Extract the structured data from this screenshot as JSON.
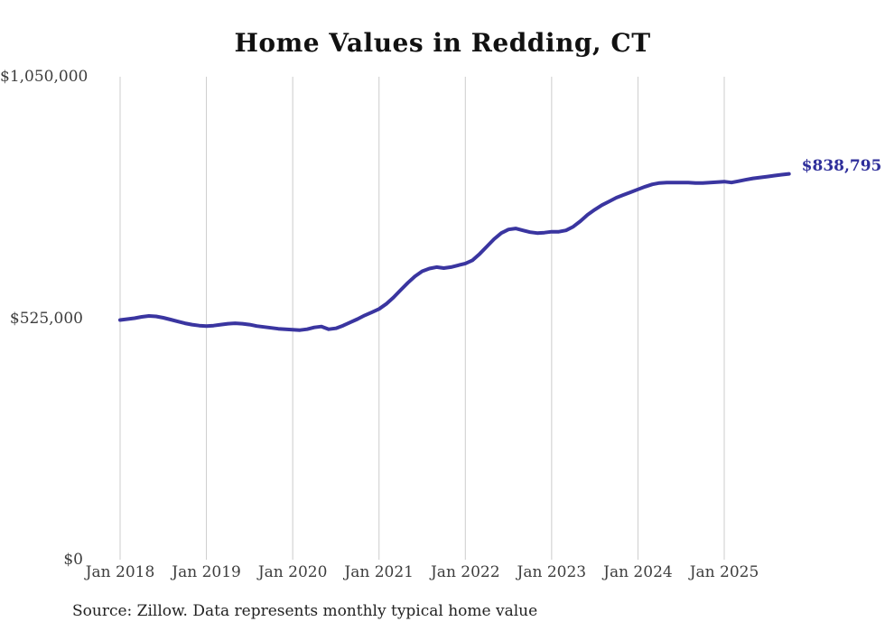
{
  "title": "Home Values in Redding, CT",
  "source_note": "Source: Zillow. Data represents monthly typical home value",
  "end_label": "$838,795",
  "colors": {
    "line": "#3a35a0",
    "end_label": "#2f2f9b",
    "gridline": "#cccccc",
    "title_text": "#111111",
    "axis_text": "#3d3d3d",
    "source_text": "#222222",
    "background": "#ffffff"
  },
  "chart_data": {
    "type": "line",
    "title": "Home Values in Redding, CT",
    "xlabel": "",
    "ylabel": "",
    "ylim": [
      0,
      1050000
    ],
    "y_ticks": [
      0,
      525000,
      1050000
    ],
    "y_tick_labels": [
      "$0",
      "$525,000",
      "$1,050,000"
    ],
    "x_tick_labels": [
      "Jan 2018",
      "Jan 2019",
      "Jan 2020",
      "Jan 2021",
      "Jan 2022",
      "Jan 2023",
      "Jan 2024",
      "Jan 2025"
    ],
    "grid": "vertical-yearly",
    "legend_position": "none",
    "frequency": "monthly",
    "x_start": "Jan 2018",
    "x_end": "Oct 2025",
    "last_value": 838795,
    "last_value_label": "$838,795",
    "series": [
      {
        "name": "Typical home value",
        "values": [
          521000,
          523000,
          525000,
          528000,
          530000,
          529000,
          526000,
          522000,
          518000,
          514000,
          511000,
          509000,
          508000,
          509000,
          511000,
          513000,
          514000,
          513000,
          511000,
          508000,
          506000,
          504000,
          502000,
          501000,
          500000,
          499000,
          501000,
          505000,
          507000,
          501000,
          503000,
          509000,
          516000,
          523000,
          531000,
          538000,
          545000,
          556000,
          570000,
          586000,
          602000,
          616000,
          627000,
          633000,
          636000,
          634000,
          636000,
          640000,
          644000,
          651000,
          665000,
          681000,
          697000,
          710000,
          718000,
          720000,
          716000,
          712000,
          710000,
          711000,
          713000,
          713000,
          716000,
          724000,
          736000,
          750000,
          761000,
          771000,
          779000,
          787000,
          793000,
          799000,
          805000,
          811000,
          816000,
          819000,
          820000,
          820000,
          820000,
          820000,
          819000,
          819000,
          820000,
          821000,
          822000,
          820000,
          823000,
          826000,
          829000,
          831000,
          833000,
          835000,
          837000,
          838795
        ]
      }
    ]
  }
}
